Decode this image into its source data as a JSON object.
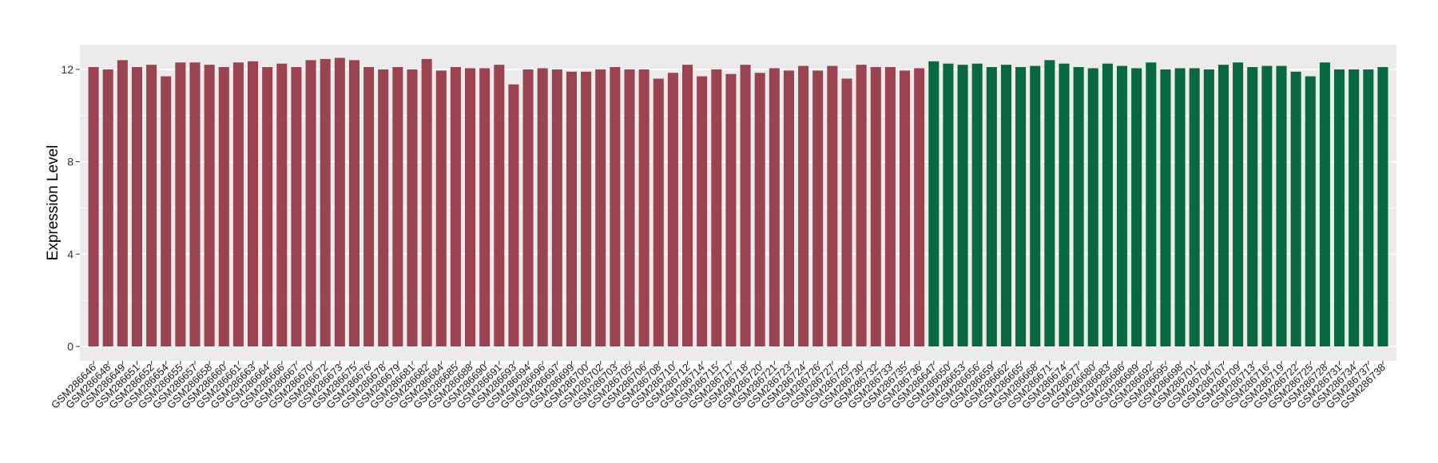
{
  "chart_data": {
    "type": "bar",
    "title": "",
    "xlabel": "",
    "ylabel": "Expression Level",
    "ylim": [
      0,
      13.0
    ],
    "yticks": [
      0,
      4,
      8,
      12
    ],
    "grid": true,
    "legend": "none",
    "colors": {
      "group_a": "#9B4350",
      "group_b": "#076842",
      "panel": "#EBEBEB",
      "grid": "#FFFFFF"
    },
    "categories": [
      "GSM286646",
      "GSM286648",
      "GSM286649",
      "GSM286651",
      "GSM286652",
      "GSM286654",
      "GSM286655",
      "GSM286657",
      "GSM286658",
      "GSM286660",
      "GSM286661",
      "GSM286663",
      "GSM286664",
      "GSM286666",
      "GSM286667",
      "GSM286670",
      "GSM286672",
      "GSM286673",
      "GSM286675",
      "GSM286676",
      "GSM286678",
      "GSM286679",
      "GSM286681",
      "GSM286682",
      "GSM286684",
      "GSM286685",
      "GSM286688",
      "GSM286690",
      "GSM286691",
      "GSM286693",
      "GSM286694",
      "GSM286696",
      "GSM286697",
      "GSM286699",
      "GSM286700",
      "GSM286702",
      "GSM286703",
      "GSM286705",
      "GSM286706",
      "GSM286708",
      "GSM286710",
      "GSM286712",
      "GSM286714",
      "GSM286715",
      "GSM286717",
      "GSM286718",
      "GSM286720",
      "GSM286721",
      "GSM286723",
      "GSM286724",
      "GSM286726",
      "GSM286727",
      "GSM286729",
      "GSM286730",
      "GSM286732",
      "GSM286733",
      "GSM286735",
      "GSM286736",
      "GSM286647",
      "GSM286650",
      "GSM286653",
      "GSM286656",
      "GSM286659",
      "GSM286662",
      "GSM286665",
      "GSM286668",
      "GSM286671",
      "GSM286674",
      "GSM286677",
      "GSM286680",
      "GSM286683",
      "GSM286686",
      "GSM286689",
      "GSM286692",
      "GSM286695",
      "GSM286698",
      "GSM286701",
      "GSM286704",
      "GSM286707",
      "GSM286709",
      "GSM286713",
      "GSM286716",
      "GSM286719",
      "GSM286722",
      "GSM286725",
      "GSM286728",
      "GSM286731",
      "GSM286734",
      "GSM286737",
      "GSM286738"
    ],
    "values": [
      12.1,
      12.0,
      12.4,
      12.1,
      12.2,
      11.7,
      12.3,
      12.3,
      12.2,
      12.1,
      12.3,
      12.35,
      12.1,
      12.25,
      12.1,
      12.4,
      12.45,
      12.5,
      12.4,
      12.1,
      12.0,
      12.1,
      12.0,
      12.45,
      11.95,
      12.1,
      12.05,
      12.05,
      12.2,
      11.35,
      12.0,
      12.05,
      12.0,
      11.9,
      11.9,
      12.0,
      12.1,
      12.0,
      12.0,
      11.6,
      11.85,
      12.2,
      11.7,
      12.0,
      11.8,
      12.2,
      11.85,
      12.05,
      11.95,
      12.15,
      11.95,
      12.15,
      11.6,
      12.2,
      12.1,
      12.1,
      11.95,
      12.05,
      12.35,
      12.25,
      12.2,
      12.25,
      12.1,
      12.2,
      12.1,
      12.15,
      12.4,
      12.25,
      12.1,
      12.05,
      12.25,
      12.15,
      12.05,
      12.3,
      12.0,
      12.05,
      12.05,
      12.0,
      12.2,
      12.3,
      12.1,
      12.15,
      12.15,
      11.9,
      11.7,
      12.3,
      12.0,
      12.0,
      12.0,
      12.1
    ],
    "group_split": 58
  }
}
